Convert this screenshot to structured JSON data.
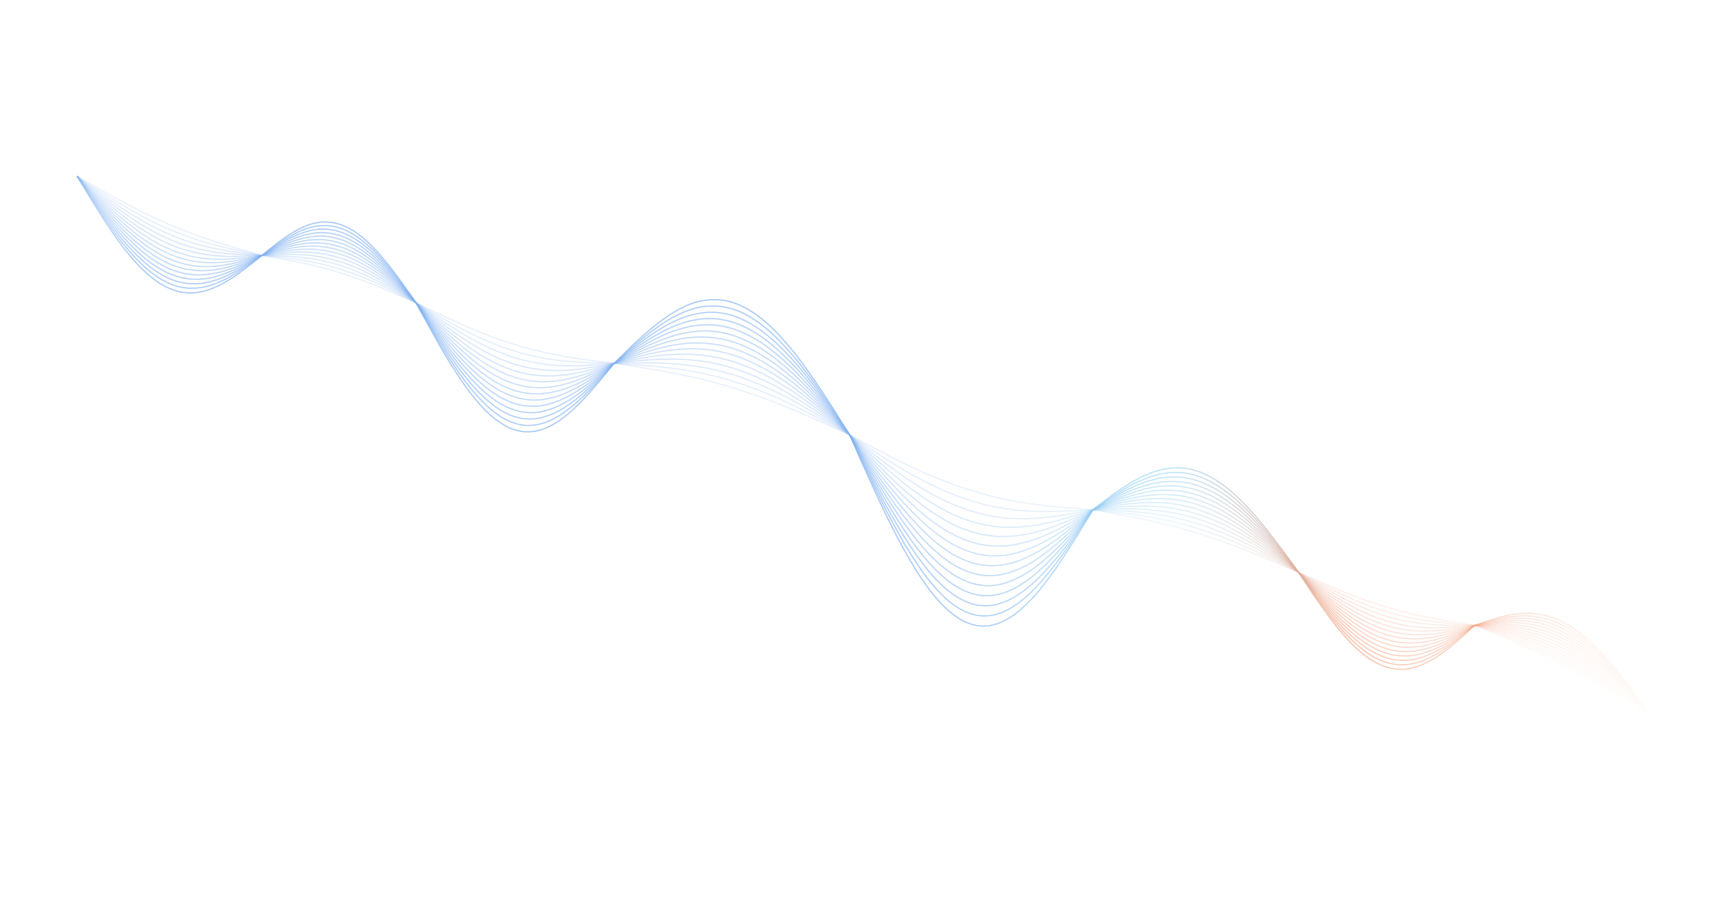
{
  "graphic": {
    "name": "decorative-wave-ribbon",
    "line_count": 14,
    "colors": {
      "blue": "#7fb0f0",
      "cyan": "#9ed8f5",
      "orange": "#f4a07e",
      "background": "#ffffff"
    }
  }
}
